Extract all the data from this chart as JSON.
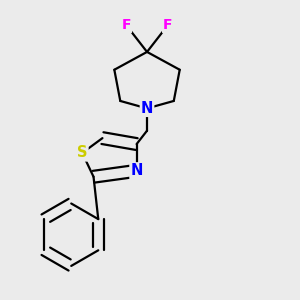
{
  "background_color": "#ebebeb",
  "bond_color": "#000000",
  "bond_width": 1.6,
  "atom_labels": {
    "S": {
      "color": "#cccc00",
      "fontsize": 10.5,
      "fontweight": "bold"
    },
    "N_thiazole": {
      "color": "#0000ff",
      "fontsize": 10.5,
      "fontweight": "bold"
    },
    "N_piperidine": {
      "color": "#0000ff",
      "fontsize": 10.5,
      "fontweight": "bold"
    },
    "F1": {
      "color": "#ff00ff",
      "fontsize": 10,
      "fontweight": "bold"
    },
    "F2": {
      "color": "#ff00ff",
      "fontsize": 10,
      "fontweight": "bold"
    }
  },
  "figsize": [
    3.0,
    3.0
  ],
  "dpi": 100,
  "xlim": [
    0.0,
    1.0
  ],
  "ylim": [
    0.0,
    1.0
  ]
}
